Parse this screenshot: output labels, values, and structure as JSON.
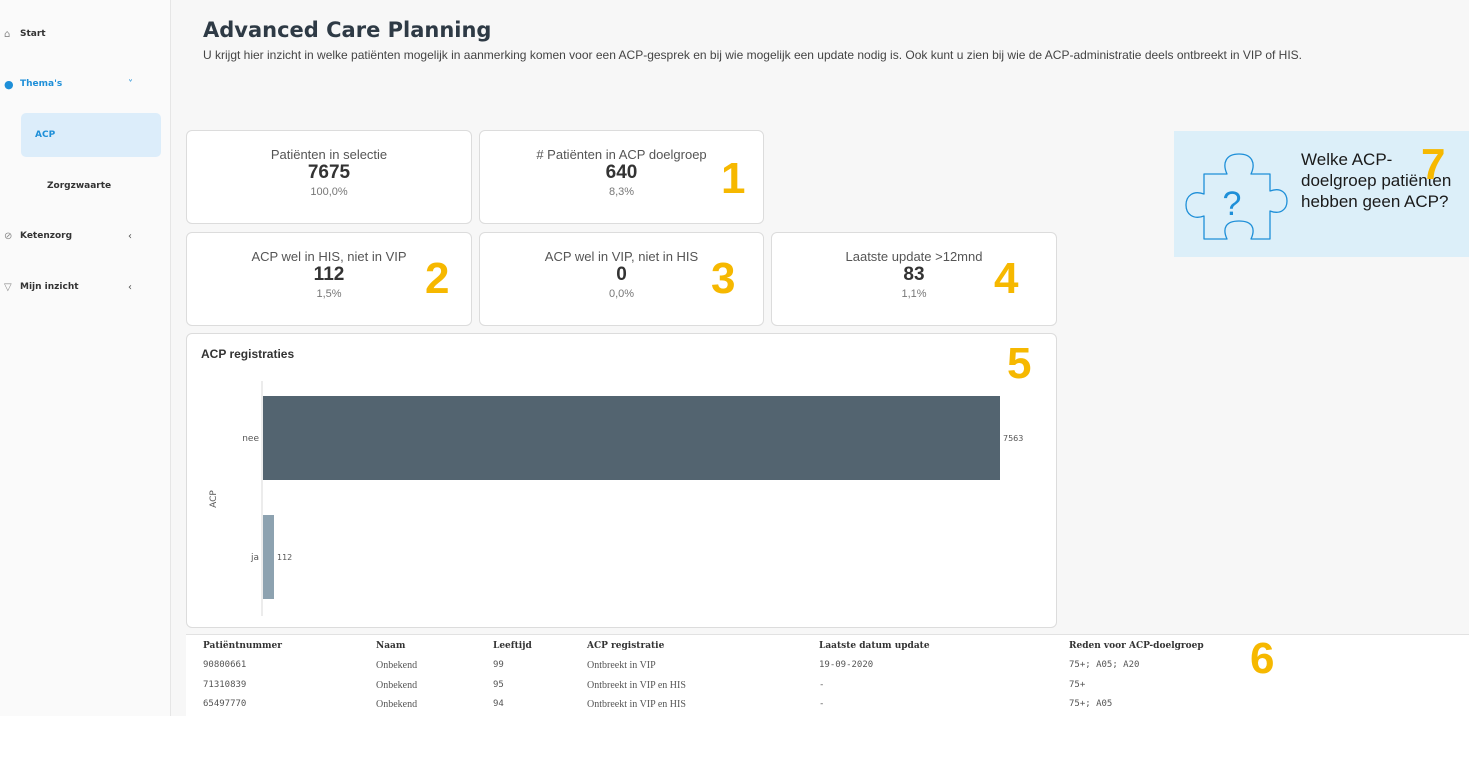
{
  "sidebar": {
    "items": [
      {
        "label": "Start",
        "icon": "home-icon"
      },
      {
        "label": "Thema's",
        "icon": "lightbulb-icon",
        "chevron": "˅"
      },
      {
        "label": "ACP"
      },
      {
        "label": "Zorgzwaarte"
      },
      {
        "label": "Ketenzorg",
        "icon": "link-icon",
        "chevron": "‹"
      },
      {
        "label": "Mijn inzicht",
        "icon": "funnel-icon",
        "chevron": "‹"
      }
    ]
  },
  "header": {
    "title": "Advanced Care Planning",
    "description": "U krijgt hier inzicht in welke patiënten mogelijk in aanmerking komen voor een ACP-gesprek en bij wie mogelijk een update nodig is. Ook kunt u zien bij wie de ACP-administratie deels ontbreekt in VIP of HIS."
  },
  "kpis": [
    {
      "label": "Patiënten in selectie",
      "value": "7675",
      "pct": "100,0%",
      "marker": ""
    },
    {
      "label": "# Patiënten in ACP doelgroep",
      "value": "640",
      "pct": "8,3%",
      "marker": "1"
    },
    {
      "label": "ACP wel in HIS, niet in VIP",
      "value": "112",
      "pct": "1,5%",
      "marker": "2"
    },
    {
      "label": "ACP wel in VIP, niet in HIS",
      "value": "0",
      "pct": "0,0%",
      "marker": "3"
    },
    {
      "label": "Laatste update >12mnd",
      "value": "83",
      "pct": "1,1%",
      "marker": "4"
    }
  ],
  "info_card": {
    "text": "Welke ACP-doelgroep patiënten hebben geen ACP?",
    "icon": "puzzle-question-icon",
    "marker": "7",
    "colors": {
      "background": "#dceff9",
      "icon": "#1e8fd8"
    }
  },
  "chart_marker": "5",
  "table_marker": "6",
  "chart_data": {
    "type": "bar",
    "orientation": "horizontal",
    "title": "ACP registraties",
    "ylabel": "ACP",
    "xlabel": "",
    "categories": [
      "nee",
      "ja"
    ],
    "values": [
      7563,
      112
    ],
    "data_labels": [
      "7563",
      "112"
    ],
    "colors": [
      "#536470",
      "#8da2b0"
    ],
    "xlim": [
      0,
      7563
    ],
    "grid": false
  },
  "table": {
    "columns": [
      "Patiëntnummer",
      "Naam",
      "Leeftijd",
      "ACP registratie",
      "Laatste datum update",
      "Reden voor ACP-doelgroep"
    ],
    "rows": [
      [
        "90800661",
        "Onbekend",
        "99",
        "Ontbreekt in VIP",
        "19-09-2020",
        "75+; A05; A20"
      ],
      [
        "71310839",
        "Onbekend",
        "95",
        "Ontbreekt in VIP en HIS",
        "-",
        "75+"
      ],
      [
        "65497770",
        "Onbekend",
        "94",
        "Ontbreekt in VIP en HIS",
        "-",
        "75+; A05"
      ]
    ]
  },
  "colors": {
    "accent": "#1e8fd8",
    "marker": "#f6b800",
    "bar_primary": "#536470",
    "bar_secondary": "#8da2b0"
  }
}
